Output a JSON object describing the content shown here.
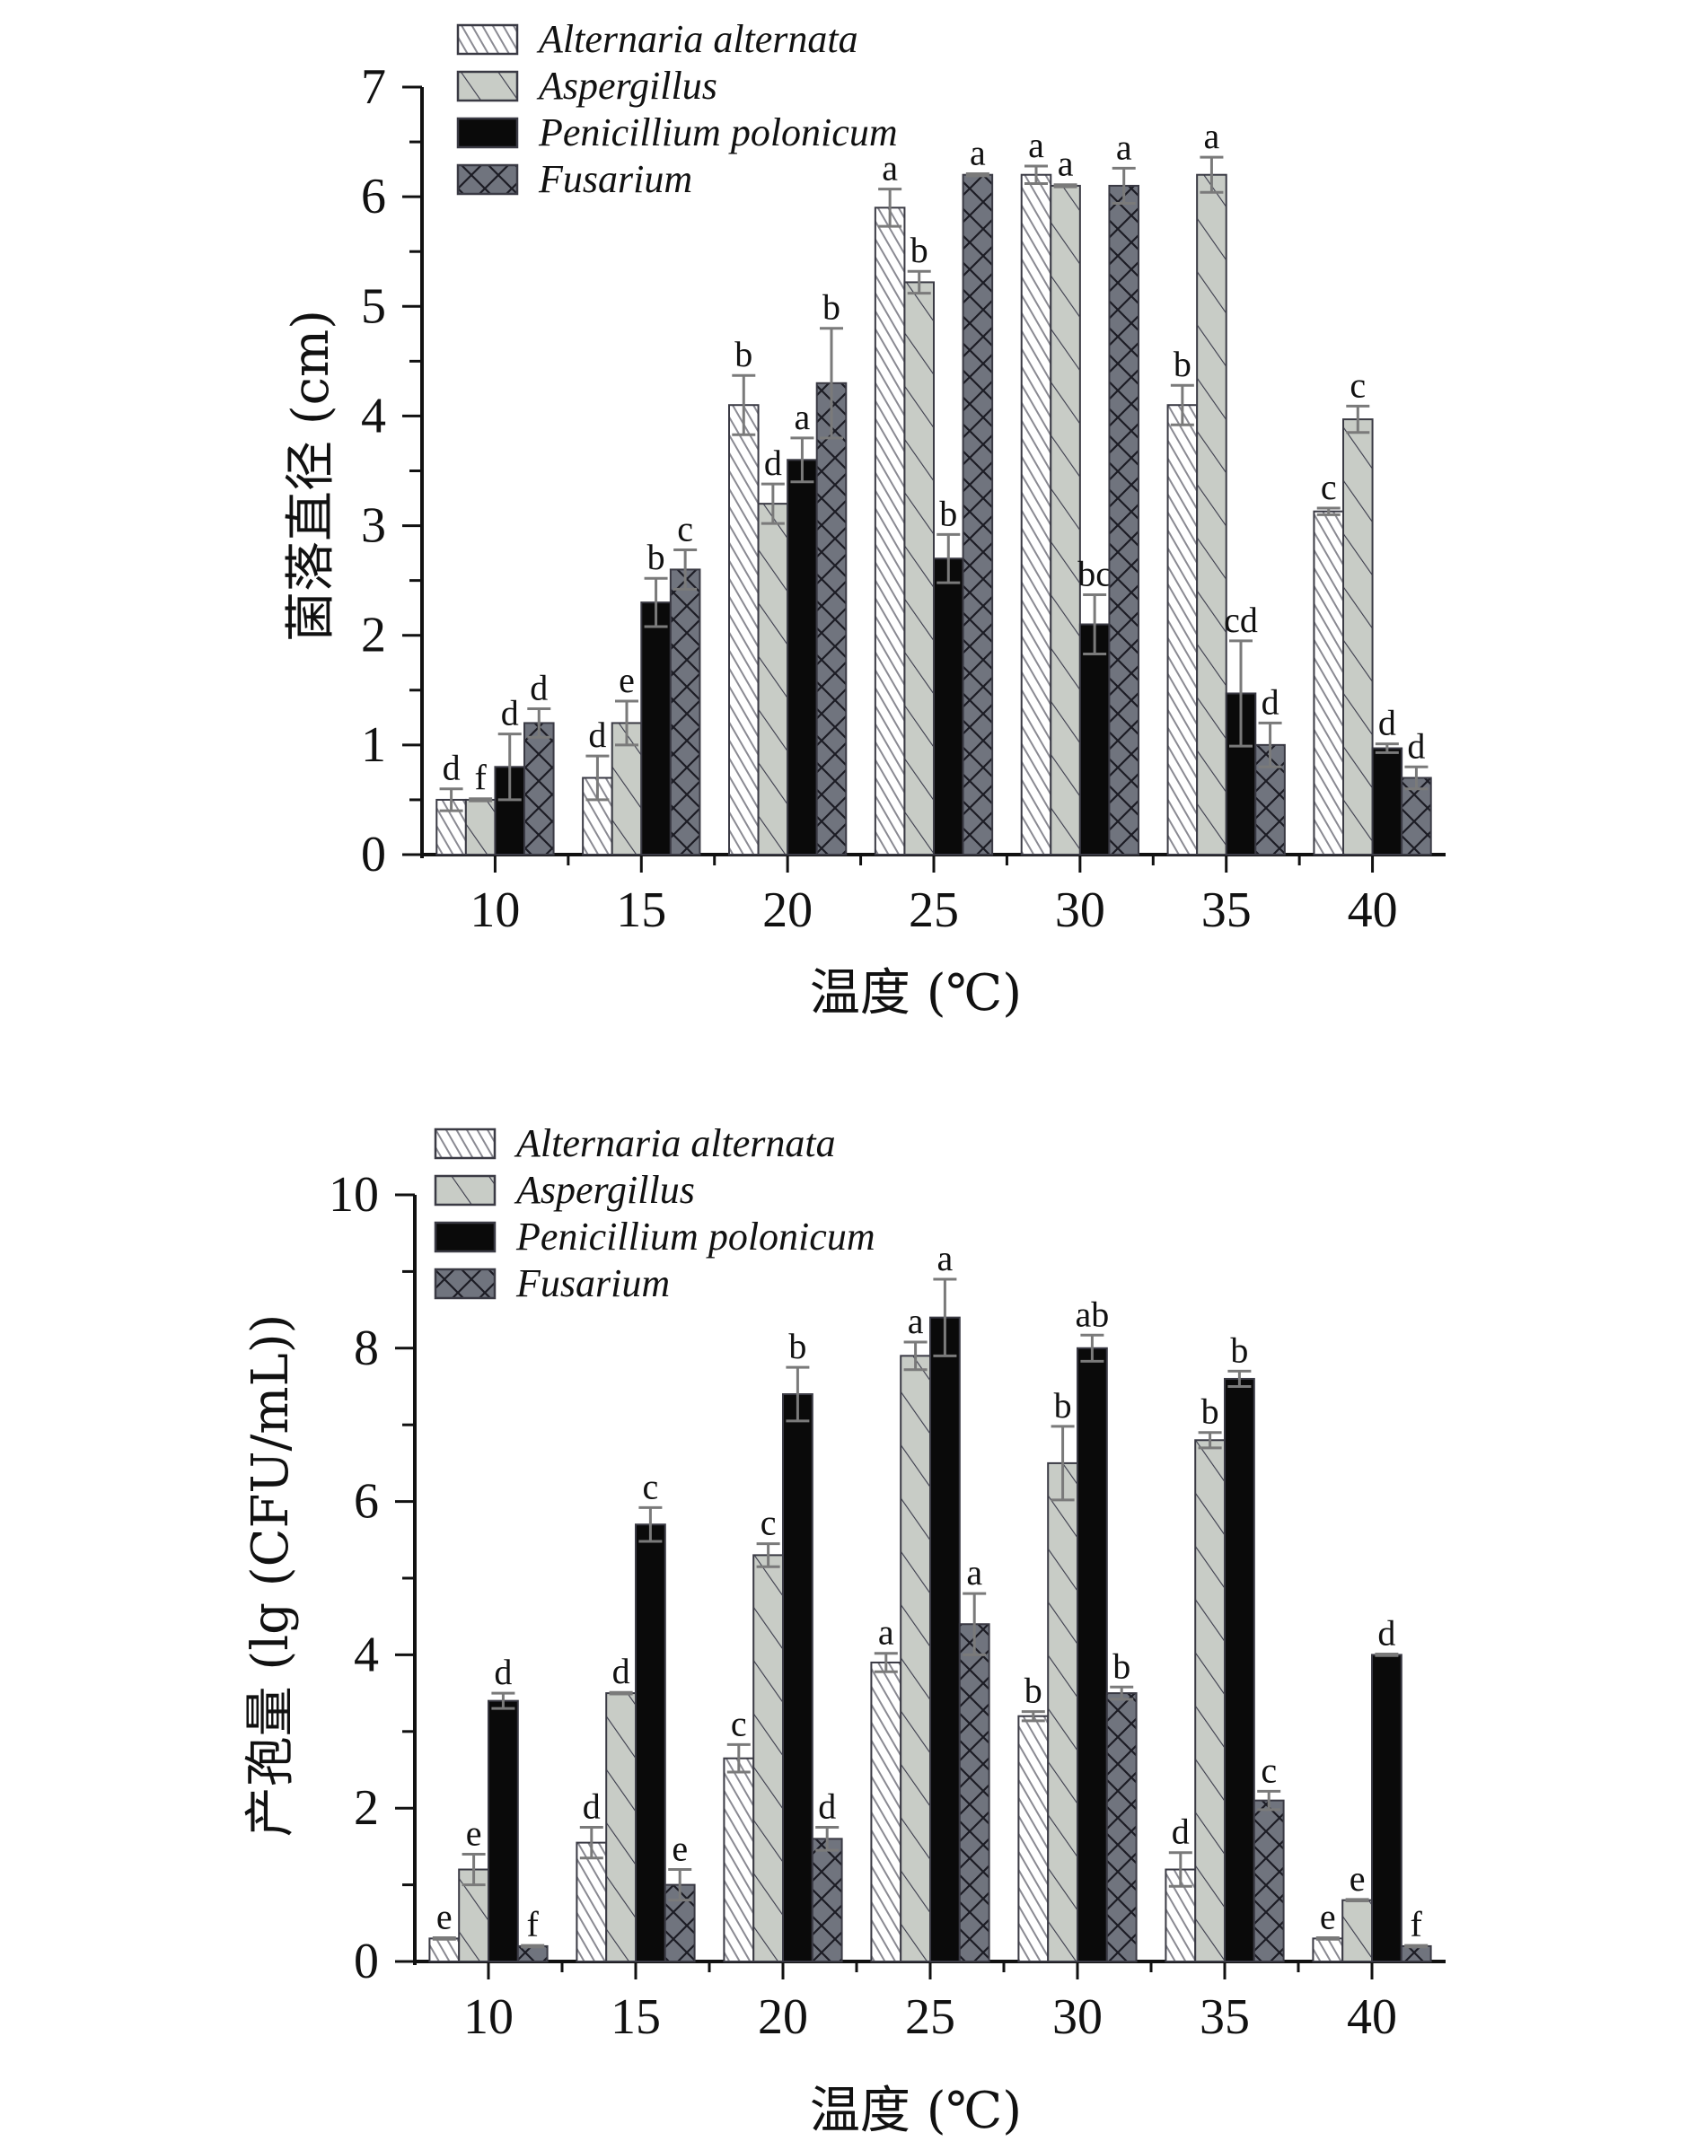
{
  "chart_data": [
    {
      "type": "bar",
      "title": "",
      "xlabel": "温度 (℃)",
      "ylabel": "菌落直径 (cm)",
      "ylim": [
        0,
        7
      ],
      "yticks": [
        "0",
        "1",
        "2",
        "3",
        "4",
        "5",
        "6",
        "7"
      ],
      "categories": [
        "10",
        "15",
        "20",
        "25",
        "30",
        "35",
        "40"
      ],
      "legend_position": "top-left",
      "grid": false,
      "series": [
        {
          "name": "Alternaria alternata",
          "pattern": "fine-hatch-white",
          "values": [
            0.5,
            0.7,
            4.1,
            5.9,
            6.2,
            4.1,
            3.13
          ],
          "errors": [
            0.1,
            0.2,
            0.27,
            0.17,
            0.08,
            0.18,
            0.03
          ],
          "labels": [
            "d",
            "d",
            "b",
            "a",
            "a",
            "b",
            "c"
          ]
        },
        {
          "name": "Aspergillus",
          "pattern": "wide-hatch-gray",
          "values": [
            0.5,
            1.2,
            3.2,
            5.22,
            6.1,
            6.2,
            3.97
          ],
          "errors": [
            0.01,
            0.2,
            0.18,
            0.1,
            0.01,
            0.16,
            0.12
          ],
          "labels": [
            "f",
            "e",
            "d",
            "b",
            "a",
            "a",
            "c"
          ]
        },
        {
          "name": "Penicillium polonicum",
          "pattern": "solid-black",
          "values": [
            0.8,
            2.3,
            3.6,
            2.7,
            2.1,
            1.47,
            0.97
          ],
          "errors": [
            0.3,
            0.22,
            0.2,
            0.22,
            0.27,
            0.48,
            0.04
          ],
          "labels": [
            "d",
            "b",
            "a",
            "b",
            "bc",
            "cd",
            "d"
          ]
        },
        {
          "name": "Fusarium",
          "pattern": "crosshatch-dark",
          "values": [
            1.2,
            2.6,
            4.3,
            6.2,
            6.1,
            1.0,
            0.7
          ],
          "errors": [
            0.13,
            0.18,
            0.5,
            0.01,
            0.16,
            0.2,
            0.1
          ],
          "labels": [
            "d",
            "c",
            "b",
            "a",
            "a",
            "d",
            "d"
          ]
        }
      ]
    },
    {
      "type": "bar",
      "title": "",
      "xlabel": "温度 (℃)",
      "ylabel": "产孢量 (lg (CFU/mL))",
      "ylim": [
        0,
        10
      ],
      "yticks": [
        "0",
        "2",
        "4",
        "6",
        "8",
        "10"
      ],
      "categories": [
        "10",
        "15",
        "20",
        "25",
        "30",
        "35",
        "40"
      ],
      "legend_position": "top-left",
      "grid": false,
      "series": [
        {
          "name": "Alternaria alternata",
          "pattern": "fine-hatch-white",
          "values": [
            0.3,
            1.55,
            2.65,
            3.9,
            3.2,
            1.2,
            0.3
          ],
          "errors": [
            0.01,
            0.2,
            0.18,
            0.12,
            0.06,
            0.22,
            0.01
          ],
          "labels": [
            "e",
            "d",
            "c",
            "a",
            "b",
            "d",
            "e"
          ]
        },
        {
          "name": "Aspergillus",
          "pattern": "wide-hatch-gray",
          "values": [
            1.2,
            3.5,
            5.3,
            7.9,
            6.5,
            6.8,
            0.8
          ],
          "errors": [
            0.2,
            0.01,
            0.15,
            0.18,
            0.48,
            0.1,
            0.01
          ],
          "labels": [
            "e",
            "d",
            "c",
            "a",
            "b",
            "b",
            "e"
          ]
        },
        {
          "name": "Penicillium polonicum",
          "pattern": "solid-black",
          "values": [
            3.4,
            5.7,
            7.4,
            8.4,
            8.0,
            7.6,
            4.0
          ],
          "errors": [
            0.1,
            0.22,
            0.35,
            0.5,
            0.17,
            0.1,
            0.01
          ],
          "labels": [
            "d",
            "c",
            "b",
            "a",
            "ab",
            "b",
            "d"
          ]
        },
        {
          "name": "Fusarium",
          "pattern": "crosshatch-dark",
          "values": [
            0.2,
            1.0,
            1.6,
            4.4,
            3.5,
            2.1,
            0.2
          ],
          "errors": [
            0.01,
            0.2,
            0.15,
            0.4,
            0.08,
            0.12,
            0.01
          ],
          "labels": [
            "f",
            "e",
            "d",
            "a",
            "b",
            "c",
            "f"
          ]
        }
      ]
    }
  ],
  "colors": {
    "axis": "#111111",
    "alt_fill": "#ffffff",
    "alt_hatch": "#8a8a92",
    "asp_fill": "#c8ccc6",
    "asp_hatch": "#3a3a4a",
    "pen_fill": "#0a0a0a",
    "fus_fill": "#70747e",
    "fus_hatch": "#1c1c24",
    "error_bar": "#7a7a7a"
  }
}
